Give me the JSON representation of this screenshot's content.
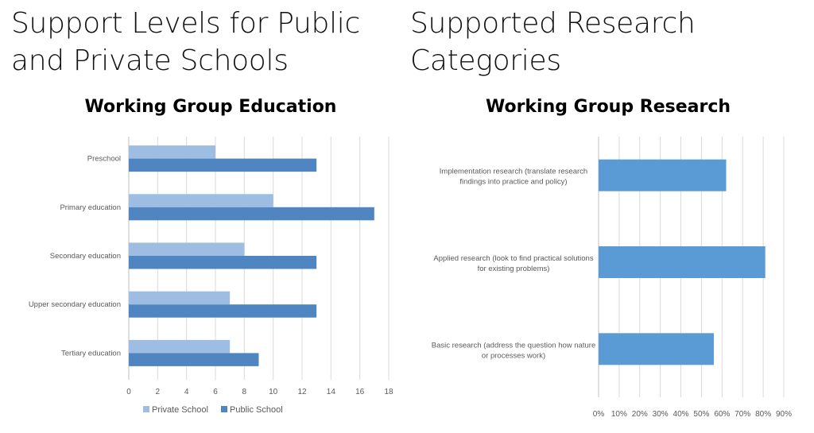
{
  "slide": {
    "left_heading": [
      "Support Levels for Public",
      "and Private Schools"
    ],
    "right_heading": [
      "Supported Research",
      "Categories"
    ]
  },
  "chart_data": [
    {
      "type": "bar",
      "orientation": "horizontal",
      "title": "Working Group Education",
      "categories": [
        "Preschool",
        "Primary education",
        "Secondary education",
        "Upper secondary education",
        "Tertiary education"
      ],
      "series": [
        {
          "name": "Private School",
          "color": "#9dbde3",
          "values": [
            6,
            10,
            8,
            7,
            7
          ]
        },
        {
          "name": "Public School",
          "color": "#4f86c2",
          "values": [
            13,
            17,
            13,
            13,
            9
          ]
        }
      ],
      "xlim": [
        0,
        18
      ],
      "ticks": [
        "0",
        "2",
        "4",
        "6",
        "8",
        "10",
        "12",
        "14",
        "16",
        "18"
      ],
      "grid": true,
      "legend": "bottom"
    },
    {
      "type": "bar",
      "orientation": "horizontal",
      "title": "Working Group Research",
      "categories": [
        [
          "Implementation research (translate research",
          "findings into practice and policy)"
        ],
        [
          "Applied research (look to find practical solutions",
          "for existing problems)"
        ],
        [
          "Basic research (address the question how nature",
          "or processes work)"
        ]
      ],
      "series": [
        {
          "color": "#5b9bd5",
          "values": [
            62,
            81,
            56
          ]
        }
      ],
      "xlim": [
        0,
        90
      ],
      "ticks": [
        "0%",
        "10%",
        "20%",
        "30%",
        "40%",
        "50%",
        "60%",
        "70%",
        "80%",
        "90%"
      ],
      "grid": true,
      "legend": "none"
    }
  ]
}
